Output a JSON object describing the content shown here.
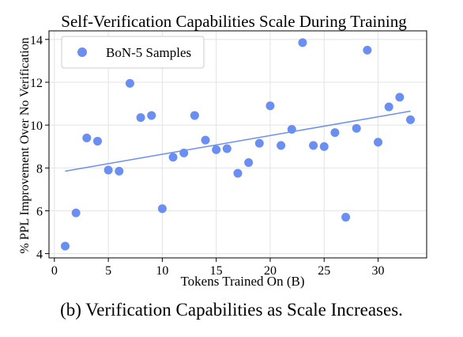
{
  "caption": "(b) Verification Capabilities as Scale Increases.",
  "chart_data": {
    "type": "scatter",
    "title": "Self-Verification Capabilities Scale During Training",
    "xlabel": "Tokens Trained On (B)",
    "ylabel": "% PPL Improvement Over No Verification",
    "xlim": [
      -0.5,
      34.5
    ],
    "ylim": [
      3.8,
      14.4
    ],
    "xticks": [
      0,
      5,
      10,
      15,
      20,
      25,
      30
    ],
    "yticks": [
      4,
      6,
      8,
      10,
      12,
      14
    ],
    "grid": true,
    "legend_position": "top-left",
    "series": [
      {
        "name": "BoN-5 Samples",
        "color": "#6b8ef2",
        "x": [
          1,
          2,
          3,
          4,
          5,
          6,
          7,
          8,
          9,
          10,
          11,
          12,
          13,
          14,
          15,
          16,
          17,
          18,
          19,
          20,
          21,
          22,
          23,
          24,
          25,
          26,
          27,
          28,
          29,
          30,
          31,
          32,
          33
        ],
        "y": [
          4.35,
          5.9,
          9.4,
          9.25,
          7.9,
          7.85,
          11.95,
          10.35,
          10.45,
          6.1,
          8.5,
          8.7,
          10.45,
          9.3,
          8.85,
          8.9,
          7.75,
          8.25,
          9.15,
          10.9,
          9.05,
          9.8,
          13.85,
          9.05,
          9.0,
          9.65,
          5.7,
          9.85,
          13.5,
          9.2,
          10.85,
          11.3,
          10.25
        ]
      }
    ],
    "trendline": {
      "color": "#6b8ef2",
      "x": [
        1,
        33
      ],
      "y": [
        7.85,
        10.65
      ]
    }
  }
}
